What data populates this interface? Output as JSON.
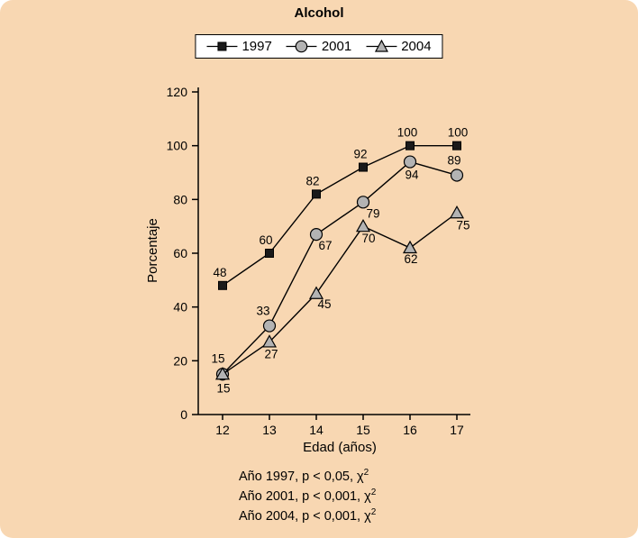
{
  "chart_data": {
    "type": "line",
    "title": "Alcohol",
    "x": [
      12,
      13,
      14,
      15,
      16,
      17
    ],
    "xlabel": "Edad (años)",
    "ylabel": "Porcentaje",
    "ylim": [
      0,
      120
    ],
    "yticks": [
      0,
      20,
      40,
      60,
      80,
      100,
      120
    ],
    "legend_position": "top",
    "grid": false,
    "line_color": "#000000",
    "series": [
      {
        "name": "1997",
        "marker": "square",
        "fill": "#1a1a1a",
        "values": [
          48,
          60,
          82,
          92,
          100,
          100
        ],
        "label_offsets": [
          [
            -3,
            -10
          ],
          [
            -4,
            -10
          ],
          [
            -4,
            -10
          ],
          [
            -3,
            -10
          ],
          [
            -3,
            -10
          ],
          [
            1,
            -10
          ]
        ]
      },
      {
        "name": "2001",
        "marker": "circle",
        "fill": "#b3b3b3",
        "values": [
          15,
          33,
          67,
          79,
          94,
          89
        ],
        "label_offsets": [
          [
            -5,
            -13
          ],
          [
            -7,
            -12
          ],
          [
            10,
            17
          ],
          [
            11,
            17
          ],
          [
            2,
            19
          ],
          [
            -3,
            -12
          ]
        ]
      },
      {
        "name": "2004",
        "marker": "triangle",
        "fill": "#b3b3b3",
        "values": [
          15,
          27,
          45,
          70,
          62,
          75
        ],
        "label_offsets": [
          [
            1,
            20
          ],
          [
            2,
            18
          ],
          [
            9,
            16
          ],
          [
            6,
            18
          ],
          [
            1,
            17
          ],
          [
            7,
            18
          ]
        ]
      }
    ]
  },
  "stats": [
    {
      "text": "Año 1997, p < 0,05, χ",
      "sup": "2"
    },
    {
      "text": "Año 2001, p < 0,001, χ",
      "sup": "2"
    },
    {
      "text": "Año 2004, p < 0,001, χ",
      "sup": "2"
    }
  ]
}
